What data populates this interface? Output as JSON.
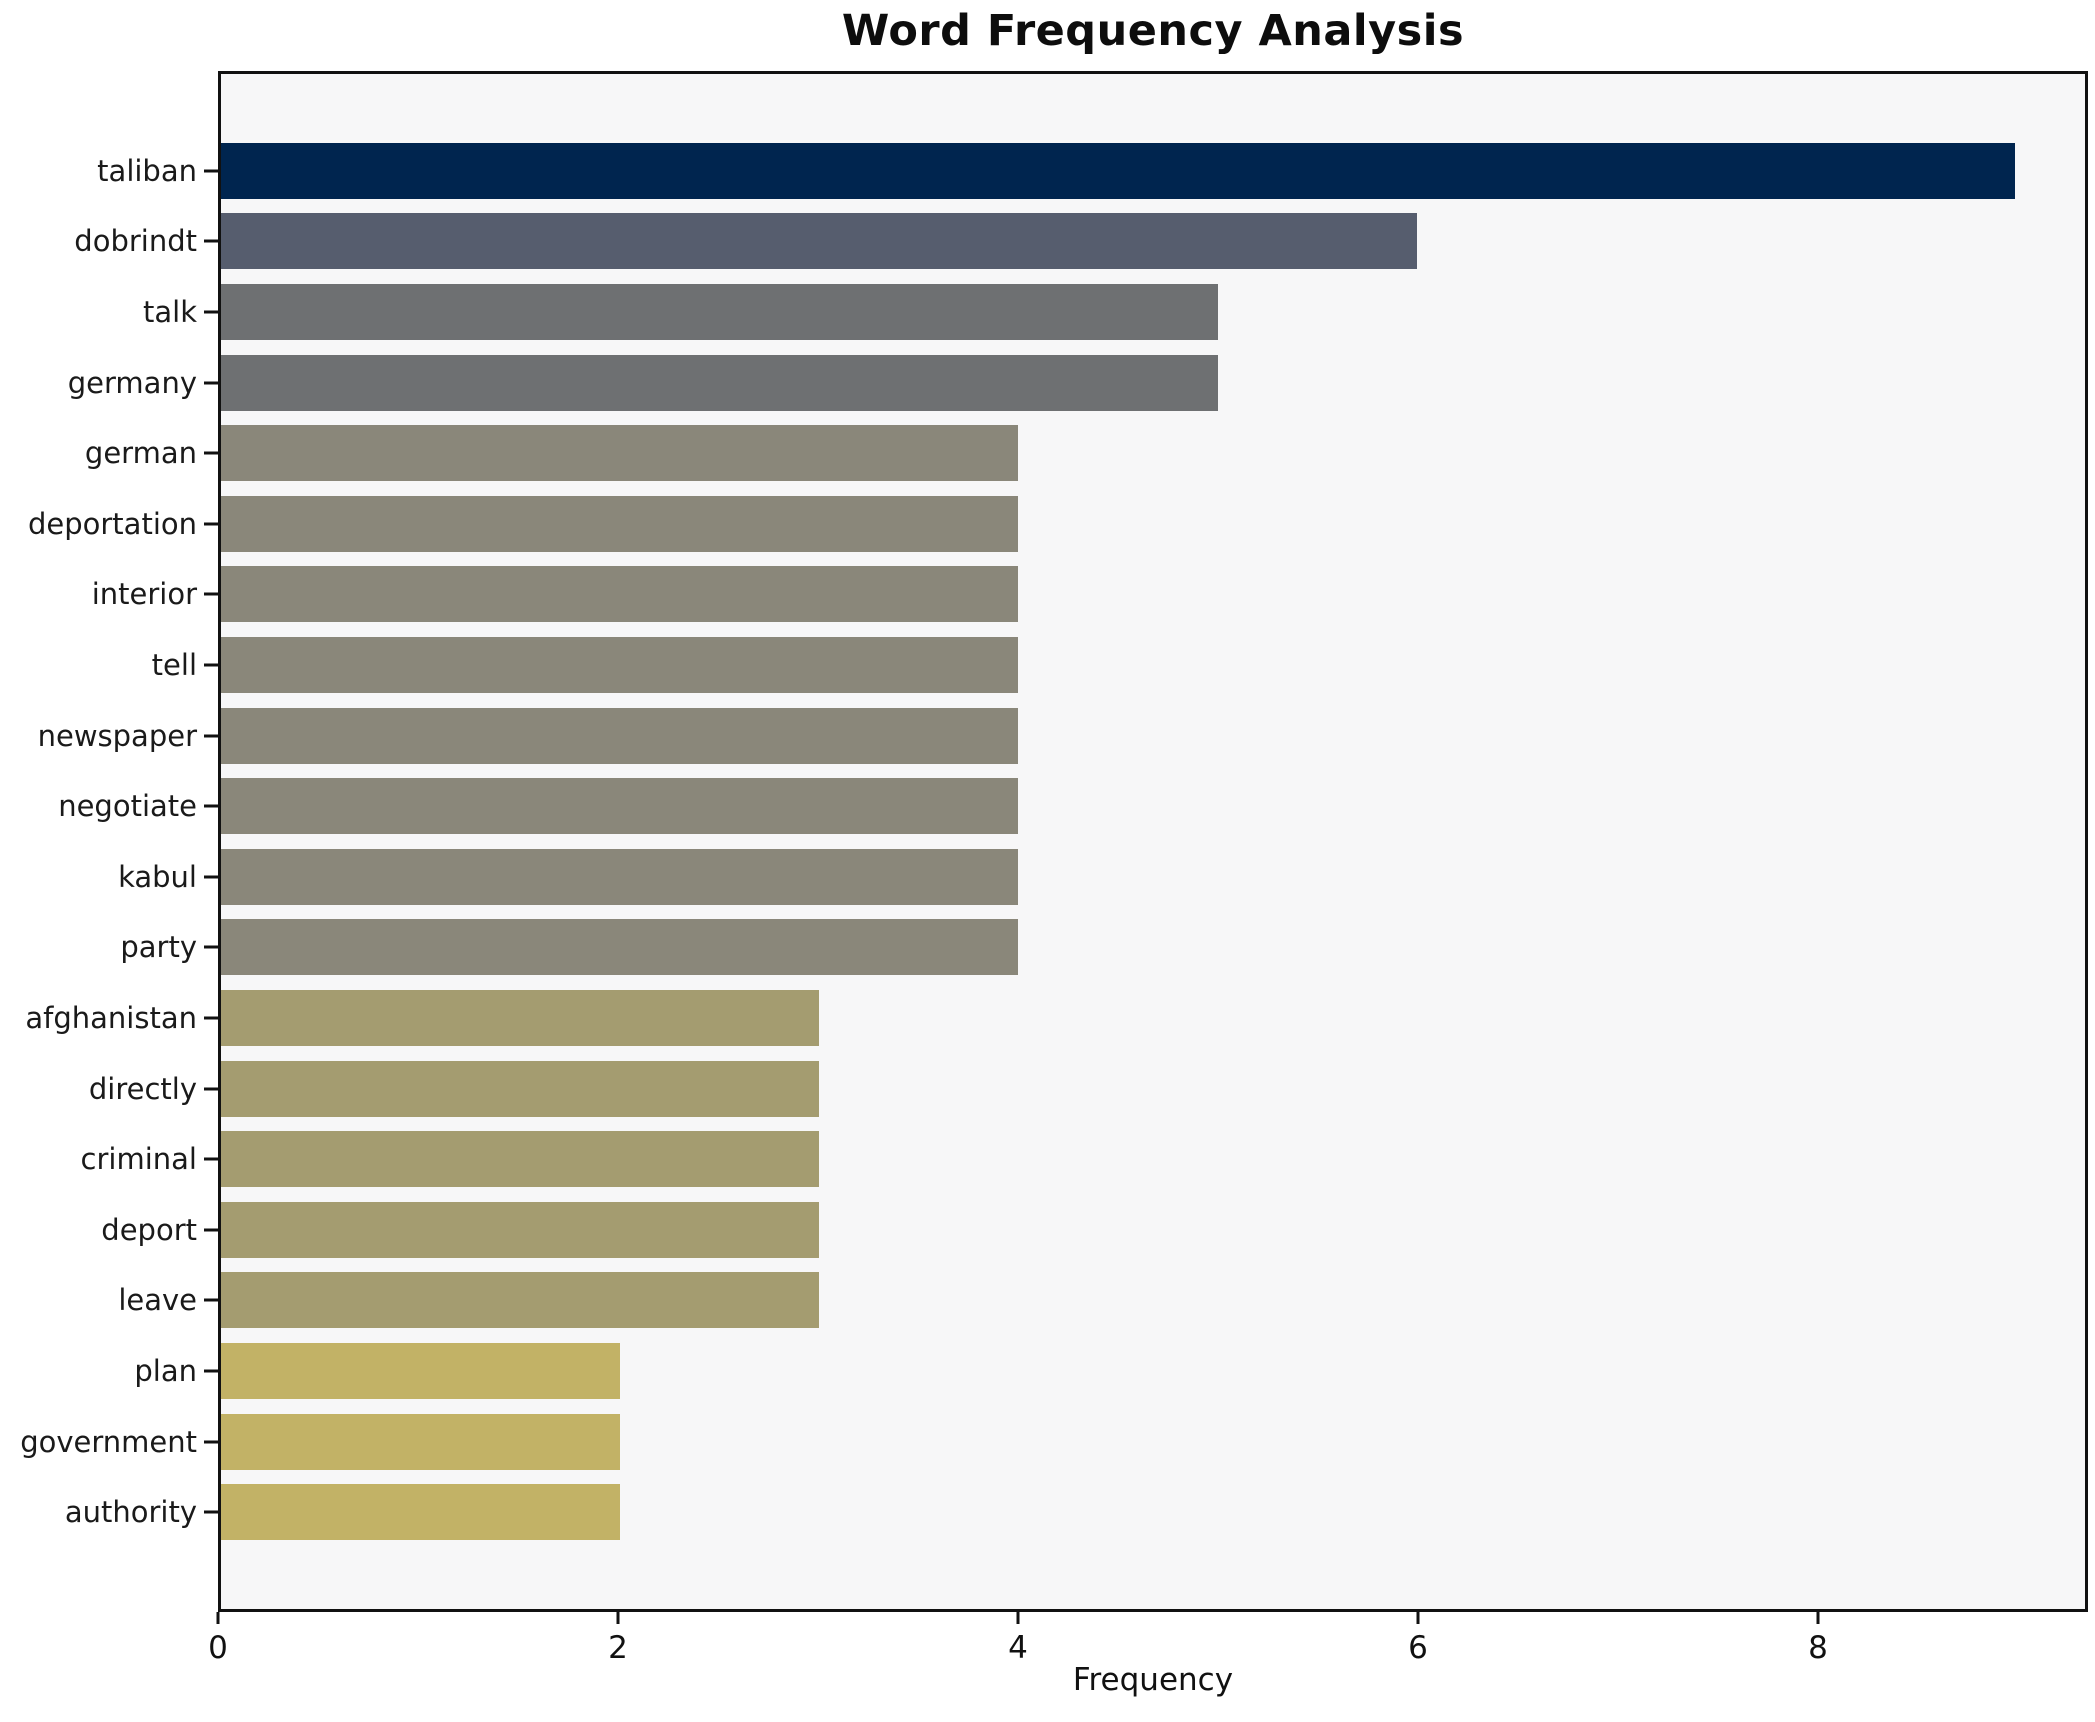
{
  "chart_data": {
    "type": "bar",
    "orientation": "horizontal",
    "title": "Word Frequency Analysis",
    "xlabel": "Frequency",
    "ylabel": "",
    "xlim": [
      0,
      9.35
    ],
    "xticks": [
      0,
      2,
      4,
      6,
      8
    ],
    "grid": false,
    "legend": "none",
    "plot_background": "#f7f7f8",
    "figure_background": "#ffffff",
    "axis_color": "#111111",
    "categories": [
      "taliban",
      "dobrindt",
      "talk",
      "germany",
      "german",
      "deportation",
      "interior",
      "tell",
      "newspaper",
      "negotiate",
      "kabul",
      "party",
      "afghanistan",
      "directly",
      "criminal",
      "deport",
      "leave",
      "plan",
      "government",
      "authority"
    ],
    "values": [
      9,
      6,
      5,
      5,
      4,
      4,
      4,
      4,
      4,
      4,
      4,
      4,
      3,
      3,
      3,
      3,
      3,
      2,
      2,
      2
    ],
    "bar_colors": [
      "#00254f",
      "#565d6e",
      "#6e7072",
      "#6e7072",
      "#8a877a",
      "#8a877a",
      "#8a877a",
      "#8a877a",
      "#8a877a",
      "#8a877a",
      "#8a877a",
      "#8a877a",
      "#a49c70",
      "#a49c70",
      "#a49c70",
      "#a49c70",
      "#a49c70",
      "#c2b266",
      "#c2b266",
      "#c2b266"
    ]
  }
}
